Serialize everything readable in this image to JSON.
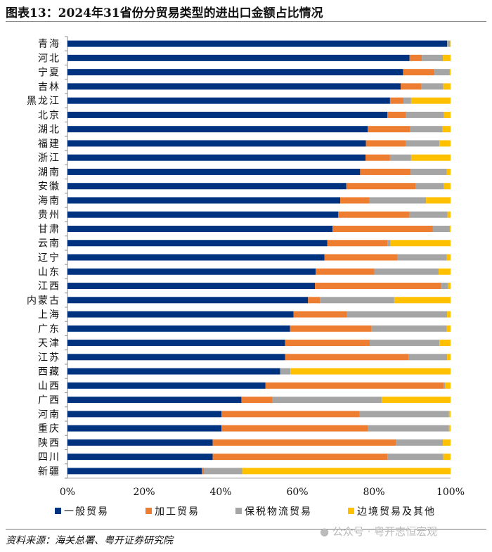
{
  "title": "图表13：2024年31省份分贸易类型的进出口金额占比情况",
  "source": "资料来源：海关总署、粤开证券研究院",
  "watermark": "公众号 · 粤开志恒宏观",
  "chart_data": {
    "type": "bar",
    "orientation": "horizontal",
    "stacked": true,
    "title": "",
    "xlabel": "",
    "ylabel": "",
    "xlim": [
      0,
      100
    ],
    "x_ticks": [
      "0%",
      "20%",
      "40%",
      "60%",
      "80%",
      "100%"
    ],
    "grid": false,
    "legend_position": "bottom",
    "categories": [
      "青海",
      "河北",
      "宁夏",
      "吉林",
      "黑龙江",
      "北京",
      "湖北",
      "福建",
      "浙江",
      "湖南",
      "安徽",
      "海南",
      "贵州",
      "甘肃",
      "云南",
      "辽宁",
      "山东",
      "江西",
      "内蒙古",
      "上海",
      "广东",
      "天津",
      "江苏",
      "西藏",
      "山西",
      "广西",
      "河南",
      "重庆",
      "陕西",
      "四川",
      "新疆"
    ],
    "series": [
      {
        "name": "一般贸易",
        "color": "#00337F",
        "values": [
          99.1,
          89.3,
          87.6,
          87.0,
          84.2,
          83.5,
          78.4,
          77.9,
          77.8,
          76.4,
          72.8,
          71.2,
          70.7,
          69.2,
          67.8,
          67.1,
          64.8,
          64.6,
          62.8,
          59.0,
          58.1,
          56.8,
          56.8,
          55.5,
          51.7,
          45.4,
          40.2,
          40.2,
          37.9,
          37.9,
          35.1
        ]
      },
      {
        "name": "加工贸易",
        "color": "#ED7D31",
        "values": [
          0,
          3.2,
          8.2,
          5.3,
          3.5,
          4.9,
          11.1,
          10.5,
          6.4,
          13.2,
          18.1,
          7.6,
          18.6,
          26.2,
          15.7,
          19.1,
          15.3,
          32.9,
          3.1,
          14.0,
          21.3,
          22.1,
          32.2,
          0,
          46.5,
          8.1,
          36.1,
          38.3,
          47.8,
          45.6,
          0.5
        ]
      },
      {
        "name": "保税物流贸易",
        "color": "#A5A5A5",
        "values": [
          0.8,
          5.5,
          4.0,
          5.8,
          2.0,
          9.9,
          8.4,
          8.7,
          5.5,
          9.4,
          7.4,
          14.8,
          9.9,
          4.4,
          0.8,
          12.8,
          16.8,
          1.9,
          19.4,
          26.1,
          19.6,
          18.2,
          10.1,
          2.7,
          0.4,
          28.5,
          23.3,
          21.1,
          12.3,
          14.6,
          10.0
        ]
      },
      {
        "name": "边境贸易及其他",
        "color": "#FFC000",
        "values": [
          0.1,
          2.0,
          0.2,
          1.9,
          10.3,
          1.7,
          2.1,
          2.9,
          10.3,
          1.0,
          1.7,
          6.4,
          0.8,
          0.2,
          15.7,
          1.0,
          3.1,
          0.6,
          14.7,
          0.9,
          1.0,
          2.9,
          0.9,
          41.8,
          1.4,
          18.0,
          0.4,
          0.4,
          2.0,
          1.9,
          54.4
        ]
      }
    ]
  }
}
